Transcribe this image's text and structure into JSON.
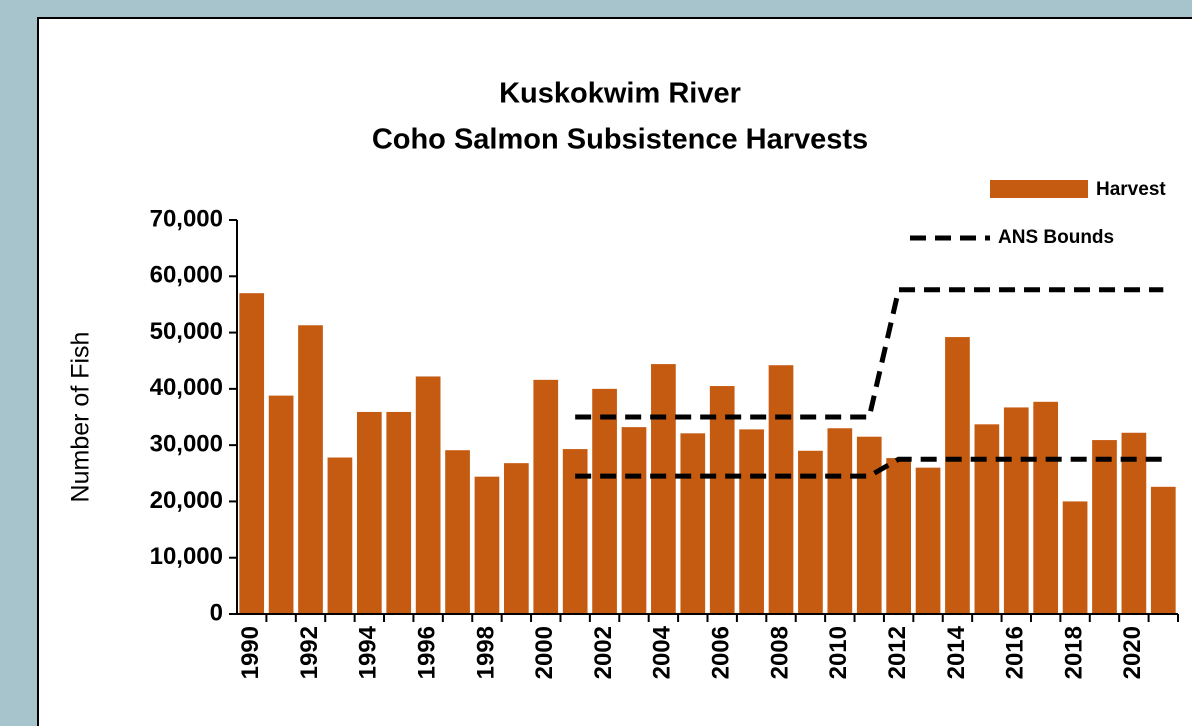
{
  "chart_data": {
    "type": "bar",
    "title": [
      "Kuskokwim River",
      "Coho Salmon Subsistence Harvests"
    ],
    "y_label": "Number of Fish",
    "categories": [
      "1990",
      null,
      "1992",
      null,
      "1994",
      null,
      "1996",
      null,
      "1998",
      null,
      "2000",
      null,
      "2002",
      null,
      "2004",
      null,
      "2006",
      null,
      "2008",
      null,
      "2010",
      null,
      "2012",
      null,
      "2014",
      null,
      "2016",
      null,
      "2018",
      null,
      "2020",
      null
    ],
    "series": [
      {
        "name": "Harvest",
        "color": "#c55a11",
        "values": [
          57000,
          38800,
          51300,
          27800,
          35900,
          35900,
          42200,
          29100,
          24400,
          26800,
          41600,
          29300,
          40000,
          33200,
          44400,
          32100,
          40500,
          32800,
          44200,
          29000,
          33000,
          31500,
          27700,
          26000,
          49200,
          33700,
          36700,
          37700,
          20000,
          30900,
          32200,
          22600
        ]
      }
    ],
    "bounds": {
      "name": "ANS Bounds",
      "color": "#000000",
      "upper": [
        null,
        null,
        null,
        null,
        null,
        null,
        null,
        null,
        null,
        null,
        null,
        35000,
        35000,
        35000,
        35000,
        35000,
        35000,
        35000,
        35000,
        35000,
        35000,
        35000,
        57600,
        57600,
        57600,
        57600,
        57600,
        57600,
        57600,
        57600,
        57600,
        57600
      ],
      "lower": [
        null,
        null,
        null,
        null,
        null,
        null,
        null,
        null,
        null,
        null,
        null,
        24500,
        24500,
        24500,
        24500,
        24500,
        24500,
        24500,
        24500,
        24500,
        24500,
        24500,
        27500,
        27500,
        27500,
        27500,
        27500,
        27500,
        27500,
        27500,
        27500,
        27500
      ]
    },
    "ylim": [
      0,
      70000
    ],
    "yticks": [
      0,
      {
        "value": 10000,
        "label": "10,000"
      },
      {
        "value": 20000,
        "label": "20,000"
      },
      {
        "value": 30000,
        "label": "30,000"
      },
      {
        "value": 40000,
        "label": "40,000"
      },
      {
        "value": 50000,
        "label": "50,000"
      },
      {
        "value": 60000,
        "label": "60,000"
      },
      {
        "value": 70000,
        "label": "70,000"
      }
    ],
    "grid": false,
    "legend": "top-right"
  }
}
